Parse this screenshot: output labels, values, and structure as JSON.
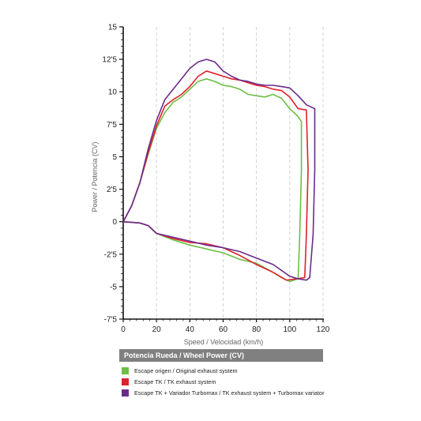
{
  "chart_data": {
    "type": "line",
    "xlabel": "Speed / Velocidad (km/h)",
    "ylabel": "Power / Potencia (CV)",
    "xlim": [
      0,
      120
    ],
    "ylim": [
      -7.5,
      15
    ],
    "x_ticks": [
      "0",
      "20",
      "40",
      "60",
      "80",
      "100",
      "120"
    ],
    "y_ticks": [
      "15",
      "12'5",
      "10",
      "7'5",
      "5",
      "2'5",
      "0",
      "-2'5",
      "-5",
      "-7'5"
    ],
    "grid": "vertical dashed",
    "legend_title": "Potencia Rueda / Wheel Power (CV)",
    "legend_position": "bottom",
    "series": [
      {
        "name": "Escape origen / Original exhaust system",
        "color": "#6cbe45",
        "points": [
          [
            0,
            0
          ],
          [
            5,
            1.2
          ],
          [
            10,
            3
          ],
          [
            15,
            5.2
          ],
          [
            20,
            7.2
          ],
          [
            25,
            8.4
          ],
          [
            30,
            9.2
          ],
          [
            35,
            9.6
          ],
          [
            40,
            10.2
          ],
          [
            45,
            10.8
          ],
          [
            50,
            11
          ],
          [
            55,
            10.8
          ],
          [
            60,
            10.5
          ],
          [
            65,
            10.4
          ],
          [
            70,
            10.2
          ],
          [
            75,
            9.8
          ],
          [
            80,
            9.7
          ],
          [
            85,
            9.6
          ],
          [
            90,
            9.8
          ],
          [
            95,
            9.5
          ],
          [
            100,
            8.7
          ],
          [
            105,
            8.1
          ],
          [
            107,
            7.7
          ],
          [
            107,
            4
          ],
          [
            106,
            -1
          ],
          [
            105,
            -4.4
          ],
          [
            100,
            -4.6
          ],
          [
            95,
            -4.3
          ],
          [
            90,
            -3.9
          ],
          [
            80,
            -3.2
          ],
          [
            70,
            -2.9
          ],
          [
            60,
            -2.4
          ],
          [
            50,
            -2.1
          ],
          [
            40,
            -1.8
          ],
          [
            30,
            -1.4
          ],
          [
            20,
            -0.9
          ],
          [
            15,
            -0.3
          ],
          [
            10,
            -0.1
          ],
          [
            0,
            0
          ]
        ]
      },
      {
        "name": "Escape TK  / TK exhaust  system",
        "color": "#e0202c",
        "points": [
          [
            0,
            0
          ],
          [
            5,
            1.2
          ],
          [
            10,
            3
          ],
          [
            15,
            5.3
          ],
          [
            20,
            7.4
          ],
          [
            25,
            8.9
          ],
          [
            30,
            9.4
          ],
          [
            35,
            9.8
          ],
          [
            40,
            10.4
          ],
          [
            45,
            11.2
          ],
          [
            50,
            11.6
          ],
          [
            55,
            11.4
          ],
          [
            60,
            11.2
          ],
          [
            65,
            11
          ],
          [
            70,
            10.9
          ],
          [
            75,
            10.7
          ],
          [
            80,
            10.5
          ],
          [
            85,
            10.4
          ],
          [
            90,
            10.2
          ],
          [
            95,
            10.1
          ],
          [
            100,
            9.6
          ],
          [
            105,
            8.7
          ],
          [
            110,
            8.6
          ],
          [
            111,
            4
          ],
          [
            110,
            -1
          ],
          [
            109,
            -4.3
          ],
          [
            104,
            -4.4
          ],
          [
            98,
            -4.5
          ],
          [
            90,
            -3.9
          ],
          [
            80,
            -3.3
          ],
          [
            70,
            -2.6
          ],
          [
            60,
            -2
          ],
          [
            50,
            -1.7
          ],
          [
            40,
            -1.6
          ],
          [
            30,
            -1.3
          ],
          [
            20,
            -0.9
          ],
          [
            15,
            -0.3
          ],
          [
            10,
            -0.1
          ],
          [
            0,
            0
          ]
        ]
      },
      {
        "name": "Escape TK + Variador Turbomax  / TK exhaust  system + Turbomax variator",
        "color": "#6a2c8c",
        "points": [
          [
            0,
            0
          ],
          [
            5,
            1.2
          ],
          [
            10,
            3
          ],
          [
            15,
            5.6
          ],
          [
            20,
            7.8
          ],
          [
            25,
            9.4
          ],
          [
            30,
            10.2
          ],
          [
            35,
            11
          ],
          [
            40,
            11.8
          ],
          [
            45,
            12.3
          ],
          [
            50,
            12.5
          ],
          [
            55,
            12.3
          ],
          [
            60,
            11.6
          ],
          [
            65,
            11.2
          ],
          [
            70,
            10.9
          ],
          [
            75,
            10.8
          ],
          [
            80,
            10.6
          ],
          [
            85,
            10.5
          ],
          [
            90,
            10.5
          ],
          [
            95,
            10.4
          ],
          [
            100,
            10.3
          ],
          [
            105,
            9.7
          ],
          [
            110,
            9
          ],
          [
            115,
            8.7
          ],
          [
            115,
            4
          ],
          [
            114,
            -1
          ],
          [
            112,
            -4.3
          ],
          [
            110,
            -4.5
          ],
          [
            105,
            -4.4
          ],
          [
            100,
            -4.2
          ],
          [
            90,
            -3.3
          ],
          [
            80,
            -2.8
          ],
          [
            70,
            -2.3
          ],
          [
            60,
            -2
          ],
          [
            50,
            -1.8
          ],
          [
            40,
            -1.5
          ],
          [
            30,
            -1.2
          ],
          [
            20,
            -0.9
          ],
          [
            15,
            -0.3
          ],
          [
            10,
            -0.1
          ],
          [
            0,
            0
          ]
        ]
      }
    ]
  }
}
